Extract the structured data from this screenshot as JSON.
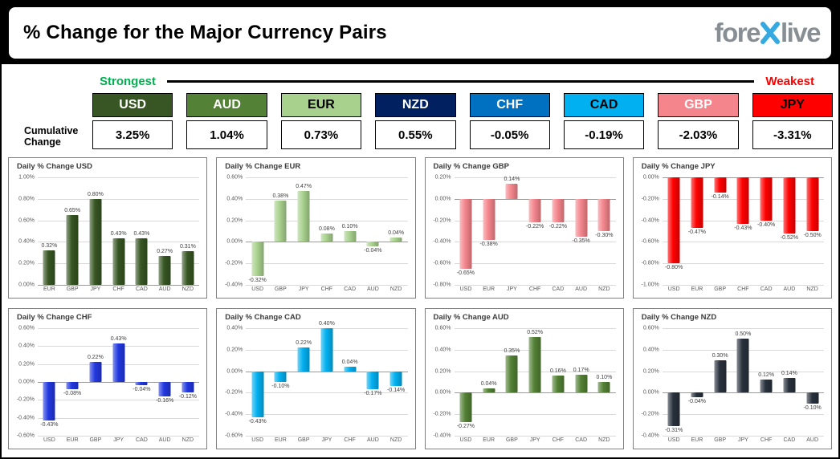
{
  "header": {
    "title": "% Change for the Major Currency Pairs",
    "logo": {
      "prefix": "fore",
      "x_icon": "blue-x",
      "suffix": "live",
      "text_color": "#878e94",
      "x_color": "#36a9e1"
    }
  },
  "scale_bar": {
    "strongest": "Strongest",
    "weakest": "Weakest",
    "strongest_color": "#00b050",
    "weakest_color": "#ff0000"
  },
  "cumulative": {
    "label": "Cumulative Change",
    "label_lines": [
      "Cumulative",
      "Change"
    ],
    "currencies": [
      {
        "code": "USD",
        "value": "3.25%",
        "bg": "#375623",
        "fg": "#ffffff"
      },
      {
        "code": "AUD",
        "value": "1.04%",
        "bg": "#538135",
        "fg": "#ffffff"
      },
      {
        "code": "EUR",
        "value": "0.73%",
        "bg": "#a9d18e",
        "fg": "#000000"
      },
      {
        "code": "NZD",
        "value": "0.55%",
        "bg": "#002060",
        "fg": "#ffffff"
      },
      {
        "code": "CHF",
        "value": "-0.05%",
        "bg": "#0070c0",
        "fg": "#ffffff"
      },
      {
        "code": "CAD",
        "value": "-0.19%",
        "bg": "#00b0f0",
        "fg": "#000000"
      },
      {
        "code": "GBP",
        "value": "-2.03%",
        "bg": "#f4858c",
        "fg": "#ffffff"
      },
      {
        "code": "JPY",
        "value": "-3.31%",
        "bg": "#ff0000",
        "fg": "#000000"
      }
    ]
  },
  "chart_data": [
    {
      "type": "bar",
      "title": "Daily % Change USD",
      "categories": [
        "EUR",
        "GBP",
        "JPY",
        "CHF",
        "CAD",
        "AUD",
        "NZD"
      ],
      "values": [
        0.32,
        0.65,
        0.8,
        0.43,
        0.43,
        0.27,
        0.31
      ],
      "labels": [
        "0.32%",
        "0.65%",
        "0.80%",
        "0.43%",
        "0.43%",
        "0.27%",
        "0.31%"
      ],
      "bar_color": "#375623",
      "ylim": [
        0.0,
        1.0
      ],
      "yticks": [
        "1.00%",
        "0.80%",
        "0.60%",
        "0.40%",
        "0.20%",
        "0.00%"
      ]
    },
    {
      "type": "bar",
      "title": "Daily % Change EUR",
      "categories": [
        "USD",
        "GBP",
        "JPY",
        "CHF",
        "CAD",
        "AUD",
        "NZD"
      ],
      "values": [
        -0.32,
        0.38,
        0.47,
        0.08,
        0.1,
        -0.04,
        0.04
      ],
      "labels": [
        "-0.32%",
        "0.38%",
        "0.47%",
        "0.08%",
        "0.10%",
        "-0.04%",
        "0.04%"
      ],
      "bar_color": "#a9d18e",
      "ylim": [
        -0.4,
        0.6
      ],
      "yticks": [
        "0.60%",
        "0.40%",
        "0.20%",
        "0.00%",
        "-0.20%",
        "-0.40%"
      ]
    },
    {
      "type": "bar",
      "title": "Daily % Change GBP",
      "categories": [
        "USD",
        "EUR",
        "JPY",
        "CHF",
        "CAD",
        "AUD",
        "NZD"
      ],
      "values": [
        -0.65,
        -0.38,
        0.14,
        -0.22,
        -0.22,
        -0.35,
        -0.3
      ],
      "labels": [
        "-0.65%",
        "-0.38%",
        "0.14%",
        "-0.22%",
        "-0.22%",
        "-0.35%",
        "-0.30%"
      ],
      "bar_color": "#f4858c",
      "ylim": [
        -0.8,
        0.2
      ],
      "yticks": [
        "0.20%",
        "0.00%",
        "-0.20%",
        "-0.40%",
        "-0.60%",
        "-0.80%"
      ]
    },
    {
      "type": "bar",
      "title": "Daily % Change JPY",
      "categories": [
        "USD",
        "EUR",
        "GBP",
        "CHF",
        "CAD",
        "AUD",
        "NZD"
      ],
      "values": [
        -0.8,
        -0.47,
        -0.14,
        -0.43,
        -0.4,
        -0.52,
        -0.5
      ],
      "labels": [
        "-0.80%",
        "-0.47%",
        "-0.14%",
        "-0.43%",
        "-0.40%",
        "-0.52%",
        "-0.50%"
      ],
      "bar_color": "#ff0000",
      "ylim": [
        -1.0,
        0.0
      ],
      "yticks": [
        "0.00%",
        "-0.20%",
        "-0.40%",
        "-0.60%",
        "-0.80%",
        "-1.00%"
      ]
    },
    {
      "type": "bar",
      "title": "Daily % Change CHF",
      "categories": [
        "USD",
        "EUR",
        "GBP",
        "JPY",
        "CAD",
        "AUD",
        "NZD"
      ],
      "values": [
        -0.43,
        -0.08,
        0.22,
        0.43,
        -0.04,
        -0.16,
        -0.12
      ],
      "labels": [
        "-0.43%",
        "-0.08%",
        "0.22%",
        "0.43%",
        "-0.04%",
        "-0.16%",
        "-0.12%"
      ],
      "bar_color": "#2238e0",
      "ylim": [
        -0.6,
        0.6
      ],
      "yticks": [
        "0.60%",
        "0.40%",
        "0.20%",
        "0.00%",
        "-0.20%",
        "-0.40%",
        "-0.60%"
      ]
    },
    {
      "type": "bar",
      "title": "Daily % Change CAD",
      "categories": [
        "USD",
        "EUR",
        "GBP",
        "JPY",
        "CHF",
        "AUD",
        "NZD"
      ],
      "values": [
        -0.43,
        -0.1,
        0.22,
        0.4,
        0.04,
        -0.17,
        -0.14
      ],
      "labels": [
        "-0.43%",
        "-0.10%",
        "0.22%",
        "0.40%",
        "0.04%",
        "-0.17%",
        "-0.14%"
      ],
      "bar_color": "#00b0f0",
      "ylim": [
        -0.6,
        0.4
      ],
      "yticks": [
        "0.40%",
        "0.20%",
        "0.00%",
        "-0.20%",
        "-0.40%",
        "-0.60%"
      ]
    },
    {
      "type": "bar",
      "title": "Daily % Change AUD",
      "categories": [
        "USD",
        "EUR",
        "GBP",
        "JPY",
        "CHF",
        "CAD",
        "NZD"
      ],
      "values": [
        -0.27,
        0.04,
        0.35,
        0.52,
        0.16,
        0.17,
        0.1
      ],
      "labels": [
        "-0.27%",
        "0.04%",
        "0.35%",
        "0.52%",
        "0.16%",
        "0.17%",
        "0.10%"
      ],
      "bar_color": "#538135",
      "ylim": [
        -0.4,
        0.6
      ],
      "yticks": [
        "0.60%",
        "0.40%",
        "0.20%",
        "0.00%",
        "-0.20%",
        "-0.40%"
      ]
    },
    {
      "type": "bar",
      "title": "Daily % Change NZD",
      "categories": [
        "USD",
        "EUR",
        "GBP",
        "JPY",
        "CHF",
        "CAD",
        "AUD"
      ],
      "values": [
        -0.31,
        -0.04,
        0.3,
        0.5,
        0.12,
        0.14,
        -0.1
      ],
      "labels": [
        "-0.31%",
        "-0.04%",
        "0.30%",
        "0.50%",
        "0.12%",
        "0.14%",
        "-0.10%"
      ],
      "bar_color": "#28313d",
      "ylim": [
        -0.4,
        0.6
      ],
      "yticks": [
        "0.60%",
        "0.40%",
        "0.20%",
        "0.00%",
        "-0.20%",
        "-0.40%"
      ]
    }
  ]
}
